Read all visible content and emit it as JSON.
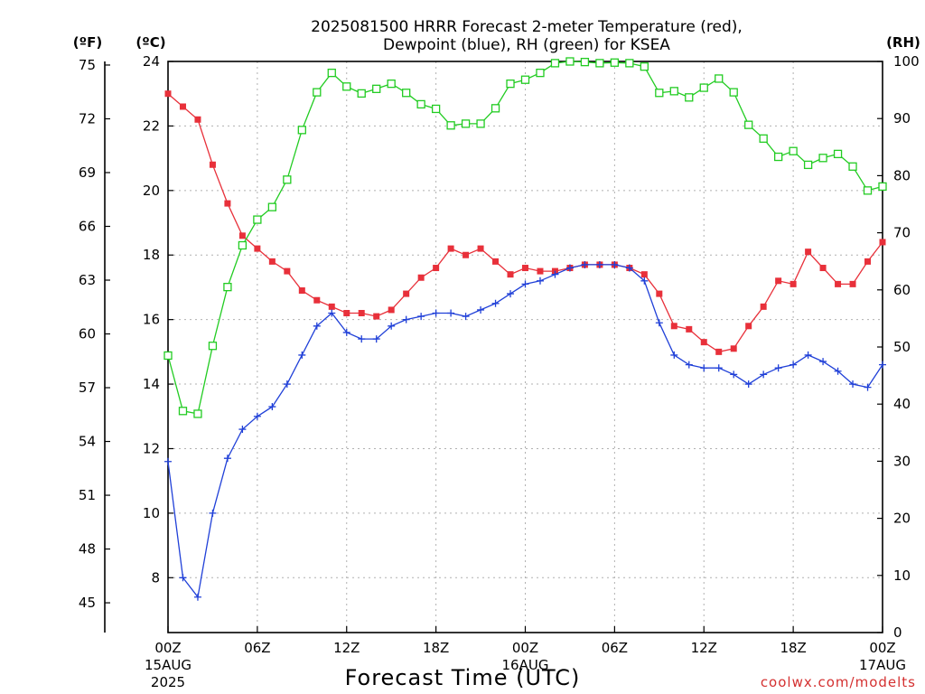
{
  "chart_data": {
    "type": "line",
    "title_line1": "2025081500 HRRR Forecast 2-meter Temperature (red),",
    "title_line2": "Dewpoint (blue), RH (green) for KSEA",
    "xlabel": "Forecast Time (UTC)",
    "credit": "coolwx.com/modelts",
    "units": {
      "f": "(ºF)",
      "c": "(ºC)",
      "rh": "(RH)"
    },
    "x_hours": [
      0,
      1,
      2,
      3,
      4,
      5,
      6,
      7,
      8,
      9,
      10,
      11,
      12,
      13,
      14,
      15,
      16,
      17,
      18,
      19,
      20,
      21,
      22,
      23,
      24,
      25,
      26,
      27,
      28,
      29,
      30,
      31,
      32,
      33,
      34,
      35,
      36,
      37,
      38,
      39,
      40,
      41,
      42,
      43,
      44,
      45,
      46,
      47,
      48
    ],
    "x_ticks": [
      {
        "h": 0,
        "label": "00Z",
        "sub1": "15AUG",
        "sub2": "2025"
      },
      {
        "h": 6,
        "label": "06Z",
        "sub1": "",
        "sub2": ""
      },
      {
        "h": 12,
        "label": "12Z",
        "sub1": "",
        "sub2": ""
      },
      {
        "h": 18,
        "label": "18Z",
        "sub1": "",
        "sub2": ""
      },
      {
        "h": 24,
        "label": "00Z",
        "sub1": "16AUG",
        "sub2": ""
      },
      {
        "h": 30,
        "label": "06Z",
        "sub1": "",
        "sub2": ""
      },
      {
        "h": 36,
        "label": "12Z",
        "sub1": "",
        "sub2": ""
      },
      {
        "h": 42,
        "label": "18Z",
        "sub1": "",
        "sub2": ""
      },
      {
        "h": 48,
        "label": "00Z",
        "sub1": "17AUG",
        "sub2": ""
      }
    ],
    "xlim": [
      0,
      48
    ],
    "c_ylim": [
      6.3,
      24.0
    ],
    "rh_ylim": [
      0,
      100
    ],
    "c_ticks": [
      "8",
      "10",
      "12",
      "14",
      "16",
      "18",
      "20",
      "22",
      "24"
    ],
    "f_ticks": [
      "45",
      "48",
      "51",
      "54",
      "57",
      "60",
      "63",
      "66",
      "69",
      "72",
      "75"
    ],
    "rh_ticks": [
      "0",
      "10",
      "20",
      "30",
      "40",
      "50",
      "60",
      "70",
      "80",
      "90",
      "100"
    ],
    "series": [
      {
        "name": "Temperature",
        "unit": "C",
        "color": "#e8303a",
        "marker": "filled-square",
        "values": [
          23.0,
          22.6,
          22.2,
          20.8,
          19.6,
          18.6,
          18.2,
          17.8,
          17.5,
          16.9,
          16.6,
          16.4,
          16.2,
          16.2,
          16.1,
          16.3,
          16.8,
          17.3,
          17.6,
          18.2,
          18.0,
          18.2,
          17.8,
          17.4,
          17.6,
          17.5,
          17.5,
          17.6,
          17.7,
          17.7,
          17.7,
          17.6,
          17.4,
          16.8,
          15.8,
          15.7,
          15.3,
          15.0,
          15.1,
          15.8,
          16.4,
          17.2,
          17.1,
          18.1,
          17.6,
          17.1,
          17.1,
          17.8,
          18.4
        ]
      },
      {
        "name": "Dewpoint",
        "unit": "C",
        "color": "#2040d8",
        "marker": "plus",
        "values": [
          11.6,
          8.0,
          7.4,
          10.0,
          11.7,
          12.6,
          13.0,
          13.3,
          14.0,
          14.9,
          15.8,
          16.2,
          15.6,
          15.4,
          15.4,
          15.8,
          16.0,
          16.1,
          16.2,
          16.2,
          16.1,
          16.3,
          16.5,
          16.8,
          17.1,
          17.2,
          17.4,
          17.6,
          17.7,
          17.7,
          17.7,
          17.6,
          17.2,
          15.9,
          14.9,
          14.6,
          14.5,
          14.5,
          14.3,
          14.0,
          14.3,
          14.5,
          14.6,
          14.9,
          14.7,
          14.4,
          14.0,
          13.9,
          14.6
        ]
      },
      {
        "name": "RH",
        "unit": "RH",
        "color": "#22cc22",
        "marker": "hollow-square",
        "values": [
          48.5,
          38.8,
          38.3,
          50.2,
          60.5,
          67.8,
          72.3,
          74.5,
          79.3,
          88.0,
          94.6,
          98.0,
          95.6,
          94.4,
          95.2,
          96.1,
          94.5,
          92.5,
          91.7,
          88.8,
          89.1,
          89.1,
          91.8,
          96.1,
          96.8,
          98.0,
          99.7,
          100.0,
          99.9,
          99.7,
          99.8,
          99.7,
          99.1,
          94.5,
          94.8,
          93.7,
          95.4,
          97.0,
          94.6,
          88.9,
          86.5,
          83.3,
          84.3,
          81.9,
          83.1,
          83.8,
          81.6,
          77.4,
          78.1
        ]
      }
    ]
  }
}
